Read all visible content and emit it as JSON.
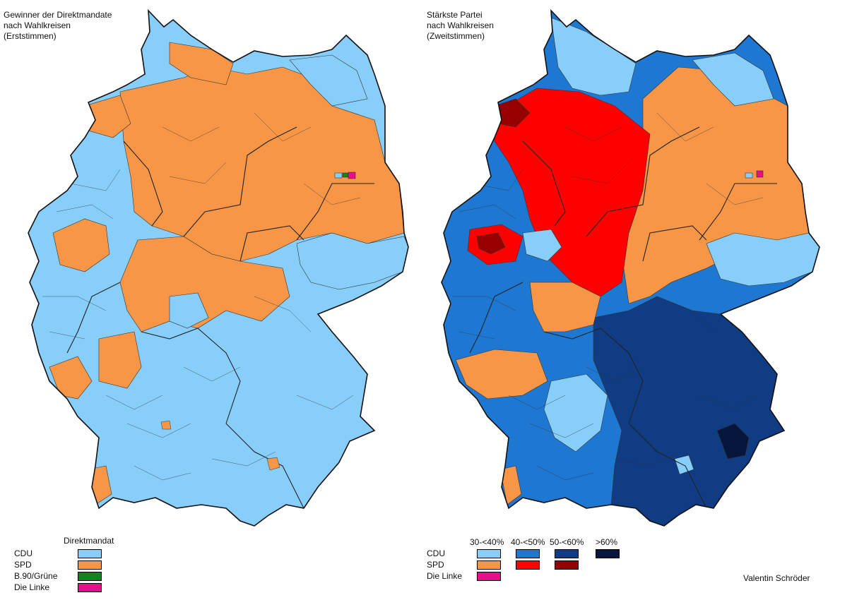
{
  "left": {
    "title": [
      "Gewinner der Direktmandate",
      "nach Wahlkreisen",
      "(Erststimmen)"
    ],
    "legend_header": "Direktmandat",
    "legend": [
      {
        "label": "CDU",
        "color": "#87cefa"
      },
      {
        "label": "SPD",
        "color": "#f79646"
      },
      {
        "label": "B.90/Grüne",
        "color": "#14821e"
      },
      {
        "label": "Die Linke",
        "color": "#e5108a"
      }
    ]
  },
  "right": {
    "title": [
      "Stärkste Partei",
      "nach Wahlkreisen",
      "(Zweitstimmen)"
    ],
    "legend_columns": [
      "30-<40%",
      "40-<50%",
      "50-<60%",
      ">60%"
    ],
    "legend": [
      {
        "label": "CDU",
        "colors": [
          "#87cefa",
          "#1e78d2",
          "#0f3c82",
          "#06163d"
        ]
      },
      {
        "label": "SPD",
        "colors": [
          "#f79646",
          "#ff0000",
          "#960000"
        ]
      },
      {
        "label": "Die Linke",
        "colors": [
          "#e5108a"
        ]
      }
    ]
  },
  "credit": "Valentin Schröder",
  "colors": {
    "cdu_light": "#87cefa",
    "cdu_mid": "#1e78d2",
    "cdu_dark": "#0f3c82",
    "cdu_darkest": "#06163d",
    "spd_light": "#f79646",
    "spd_mid": "#ff0000",
    "spd_dark": "#960000",
    "green": "#14821e",
    "linke": "#e5108a"
  }
}
